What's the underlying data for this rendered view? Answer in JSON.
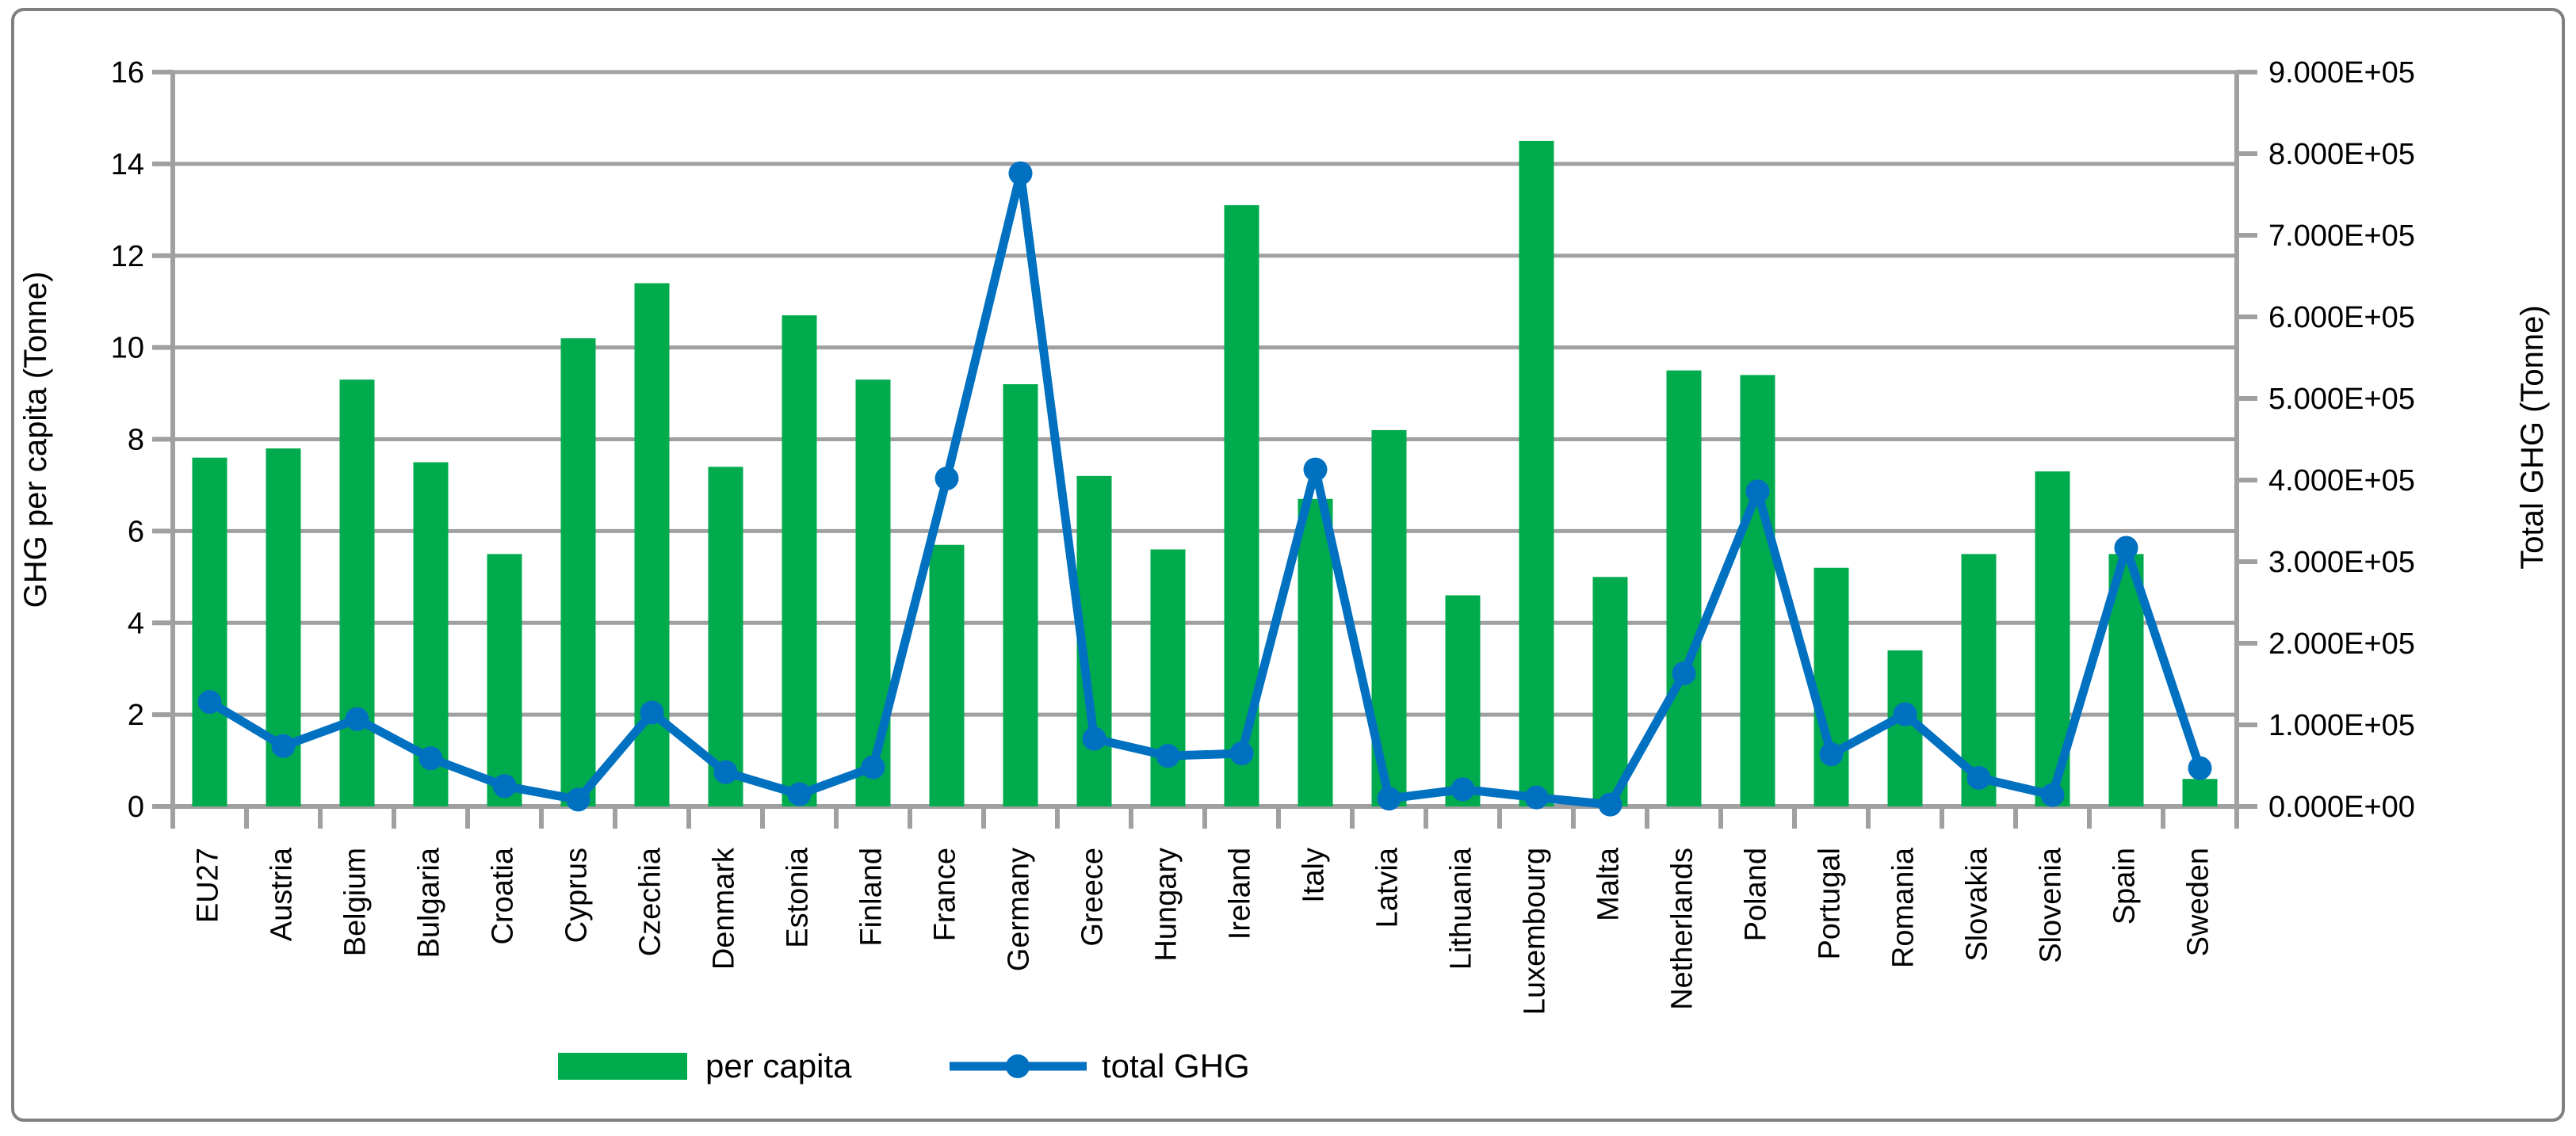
{
  "figure": {
    "background": "#ffffff",
    "border_color": "#808080"
  },
  "chart_data": {
    "type": "bar+line combo",
    "categories": [
      "EU27",
      "Austria",
      "Belgium",
      "Bulgaria",
      "Croatia",
      "Cyprus",
      "Czechia",
      "Denmark",
      "Estonia",
      "Finland",
      "France",
      "Germany",
      "Greece",
      "Hungary",
      "Ireland",
      "Italy",
      "Latvia",
      "Lithuania",
      "Luxembourg",
      "Malta",
      "Netherlands",
      "Poland",
      "Portugal",
      "Romania",
      "Slovakia",
      "Slovenia",
      "Spain",
      "Sweden"
    ],
    "series": [
      {
        "name": "per capita",
        "type": "bar",
        "axis": "left",
        "color": "#00AB4E",
        "values": [
          7.6,
          7.8,
          9.3,
          7.5,
          5.5,
          10.2,
          11.4,
          7.4,
          10.7,
          9.3,
          5.7,
          9.2,
          7.2,
          5.6,
          13.1,
          6.7,
          8.2,
          4.6,
          14.5,
          5.0,
          9.5,
          9.4,
          5.2,
          3.4,
          5.5,
          7.3,
          5.5,
          0.6
        ]
      },
      {
        "name": "total GHG",
        "type": "line",
        "axis": "right",
        "color": "#0070C0",
        "values": [
          128000,
          74000,
          107000,
          59000,
          25000,
          8400,
          115000,
          42000,
          15000,
          48000,
          402000,
          776000,
          83000,
          62000,
          65000,
          413000,
          9600,
          21000,
          11000,
          2300,
          163000,
          386000,
          64000,
          113000,
          35000,
          14000,
          317000,
          47000
        ]
      }
    ],
    "left_axis": {
      "label": "GHG per capita  (Tonne)",
      "min": 0,
      "max": 16,
      "step": 2,
      "tick_labels": [
        "0",
        "2",
        "4",
        "6",
        "8",
        "10",
        "12",
        "14",
        "16"
      ]
    },
    "right_axis": {
      "label": "Total GHG (Tonne)",
      "min": 0,
      "max": 900000,
      "step": 100000,
      "tick_labels": [
        "0.000E+00",
        "1.000E+05",
        "2.000E+05",
        "3.000E+05",
        "4.000E+05",
        "5.000E+05",
        "6.000E+05",
        "7.000E+05",
        "8.000E+05",
        "9.000E+05"
      ]
    },
    "grid": true,
    "grid_color": "#A0A0A0",
    "legend": {
      "position": "bottom-center",
      "items": [
        {
          "label": "per capita",
          "swatch": "green-rect"
        },
        {
          "label": "total GHG",
          "swatch": "blue-line-marker"
        }
      ]
    }
  }
}
